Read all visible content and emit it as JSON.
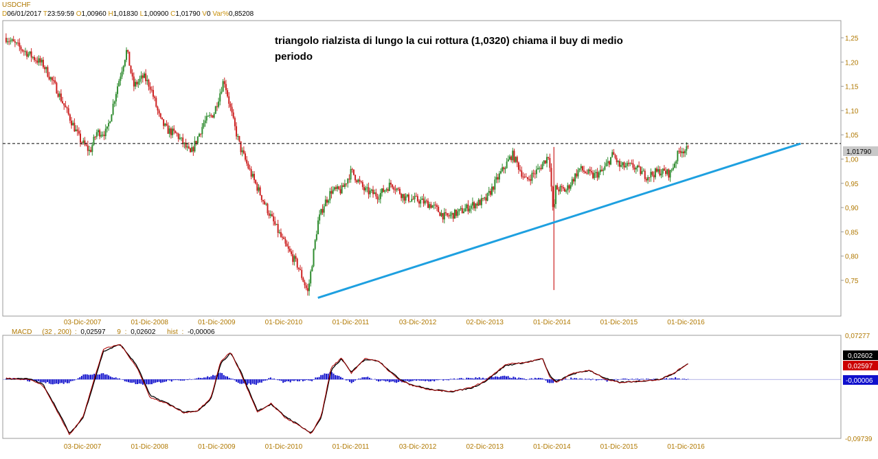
{
  "header": {
    "symbol": "USDCHF",
    "d_key": "D",
    "date": "06/01/2017",
    "t_key": "T",
    "time": "23:59:59",
    "o_key": "O",
    "open": "1,00960",
    "h_key": "H",
    "high": "1,01830",
    "l_key": "L",
    "low": "1,00900",
    "c_key": "C",
    "close": "1,01790",
    "v_key": "V",
    "volume": "0",
    "var_key": "Var%",
    "var": "0,85208"
  },
  "annotation": {
    "line1": "triangolo rialzista di lungo  la cui rottura (1,0320) chiama il buy di medio",
    "line2": "periodo"
  },
  "price_badge": "1,01790",
  "macd_header": {
    "name": "MACD",
    "params": "(32 , 200)",
    "colon": ":",
    "macd_value": "0,02597",
    "signal_key": "9",
    "signal_value": "0,02602",
    "hist_key": "hist",
    "hist_value": "-0,00006"
  },
  "macd_badges": [
    "0,02602",
    "0,02597",
    "-0,00006"
  ],
  "colors": {
    "up_candle": "#2e8b2e",
    "down_candle": "#cc2020",
    "trendline": "#1ea0e0",
    "macd_line": "#aa0000",
    "signal_line": "#000000",
    "histogram": "#1010cc",
    "axis_label": "#b07800",
    "badge_grey": "#c8c8c8"
  },
  "chart_data": [
    {
      "type": "line",
      "subtype": "candlestick",
      "title": "USDCHF",
      "x_tick_labels": [
        "03-Dic-2007",
        "01-Dic-2008",
        "01-Dic-2009",
        "01-Dic-2010",
        "01-Dic-2011",
        "03-Dic-2012",
        "02-Dic-2013",
        "01-Dic-2014",
        "01-Dic-2015",
        "01-Dic-2016"
      ],
      "y_tick_labels": [
        "1,25",
        "1,20",
        "1,15",
        "1,10",
        "1,05",
        "1,00",
        "0,95",
        "0,90",
        "0,85",
        "0,80",
        "0,75"
      ],
      "ylim": [
        0.7,
        1.28
      ],
      "x_range": [
        2006.8,
        2019.3
      ],
      "grid": false,
      "series": [
        {
          "x": [
            2006.85,
            2007.0,
            2007.2,
            2007.4,
            2007.6,
            2007.8,
            2007.95,
            2008.1,
            2008.2,
            2008.35,
            2008.5,
            2008.65,
            2008.75,
            2008.9,
            2009.0,
            2009.15,
            2009.25,
            2009.4,
            2009.6,
            2009.8,
            2009.95,
            2010.1,
            2010.25,
            2010.35,
            2010.5,
            2010.65,
            2010.8,
            2011.0,
            2011.2,
            2011.35,
            2011.5,
            2011.6,
            2011.65,
            2011.7,
            2011.85,
            2012.0,
            2012.2,
            2012.4,
            2012.6,
            2012.8,
            2013.0,
            2013.2,
            2013.4,
            2013.6,
            2013.8,
            2014.0,
            2014.2,
            2014.4,
            2014.6,
            2014.8,
            2014.95,
            2015.02,
            2015.03,
            2015.2,
            2015.4,
            2015.6,
            2015.75,
            2015.9,
            2016.0,
            2016.2,
            2016.4,
            2016.6,
            2016.75,
            2016.9,
            2017.02
          ],
          "y": [
            1.25,
            1.235,
            1.215,
            1.195,
            1.145,
            1.085,
            1.04,
            1.015,
            1.055,
            1.055,
            1.145,
            1.225,
            1.15,
            1.17,
            1.15,
            1.08,
            1.06,
            1.05,
            1.01,
            1.075,
            1.095,
            1.165,
            1.07,
            1.02,
            0.97,
            0.925,
            0.88,
            0.825,
            0.78,
            0.725,
            0.87,
            0.91,
            0.92,
            0.935,
            0.935,
            0.975,
            0.935,
            0.925,
            0.95,
            0.92,
            0.915,
            0.905,
            0.88,
            0.89,
            0.905,
            0.915,
            0.965,
            1.01,
            0.955,
            0.98,
            1.01,
            0.86,
            0.94,
            0.935,
            0.98,
            0.965,
            0.975,
            1.01,
            0.985,
            0.985,
            0.965,
            0.975,
            0.97,
            1.02,
            1.018
          ]
        }
      ],
      "horizontal_line": 1.032,
      "trendline": [
        [
          2011.5,
          0.714
        ],
        [
          2018.7,
          1.032
        ]
      ]
    },
    {
      "type": "line",
      "subtype": "macd",
      "title": "MACD",
      "y_tick_labels": [
        "0,07277",
        "-0,09739"
      ],
      "ylim": [
        -0.09739,
        0.07277
      ],
      "x_range": [
        2006.8,
        2019.3
      ],
      "series": [
        {
          "name": "MACD",
          "x": [
            2006.85,
            2007.2,
            2007.4,
            2007.6,
            2007.8,
            2008.0,
            2008.3,
            2008.55,
            2008.8,
            2009.0,
            2009.25,
            2009.5,
            2009.7,
            2009.9,
            2010.05,
            2010.2,
            2010.35,
            2010.6,
            2010.8,
            2011.0,
            2011.2,
            2011.4,
            2011.55,
            2011.7,
            2011.85,
            2012.0,
            2012.2,
            2012.4,
            2012.7,
            2012.9,
            2013.2,
            2013.5,
            2013.8,
            2014.0,
            2014.3,
            2014.6,
            2014.85,
            2014.95,
            2015.05,
            2015.3,
            2015.55,
            2015.8,
            2016.0,
            2016.3,
            2016.6,
            2016.8,
            2017.02
          ],
          "y": [
            0.002,
            0.0,
            -0.01,
            -0.05,
            -0.092,
            -0.06,
            0.05,
            0.058,
            0.02,
            -0.03,
            -0.04,
            -0.055,
            -0.052,
            -0.032,
            0.03,
            0.045,
            0.01,
            -0.055,
            -0.04,
            -0.062,
            -0.075,
            -0.09,
            -0.06,
            0.02,
            0.035,
            0.01,
            0.035,
            0.03,
            0.0,
            -0.01,
            -0.018,
            -0.02,
            -0.013,
            -0.002,
            0.025,
            0.028,
            0.035,
            0.005,
            -0.005,
            0.01,
            0.015,
            0.0,
            -0.005,
            -0.003,
            0.0,
            0.01,
            0.026
          ]
        },
        {
          "name": "9",
          "x": [
            2006.85,
            2007.2,
            2007.4,
            2007.6,
            2007.8,
            2008.0,
            2008.3,
            2008.55,
            2008.8,
            2009.0,
            2009.25,
            2009.5,
            2009.7,
            2009.9,
            2010.05,
            2010.2,
            2010.35,
            2010.6,
            2010.8,
            2011.0,
            2011.2,
            2011.4,
            2011.55,
            2011.7,
            2011.85,
            2012.0,
            2012.2,
            2012.4,
            2012.7,
            2012.9,
            2013.2,
            2013.5,
            2013.8,
            2014.0,
            2014.3,
            2014.6,
            2014.85,
            2014.95,
            2015.05,
            2015.3,
            2015.55,
            2015.8,
            2016.0,
            2016.3,
            2016.6,
            2016.8,
            2017.02
          ],
          "y": [
            0.001,
            0.001,
            -0.008,
            -0.047,
            -0.09,
            -0.063,
            0.046,
            0.058,
            0.023,
            -0.027,
            -0.039,
            -0.054,
            -0.053,
            -0.034,
            0.026,
            0.044,
            0.013,
            -0.052,
            -0.041,
            -0.06,
            -0.074,
            -0.089,
            -0.063,
            0.015,
            0.034,
            0.012,
            0.033,
            0.031,
            0.002,
            -0.009,
            -0.017,
            -0.02,
            -0.014,
            -0.003,
            0.023,
            0.028,
            0.034,
            0.008,
            -0.004,
            0.009,
            0.015,
            0.001,
            -0.005,
            -0.003,
            0.0,
            0.009,
            0.026
          ]
        }
      ]
    }
  ]
}
